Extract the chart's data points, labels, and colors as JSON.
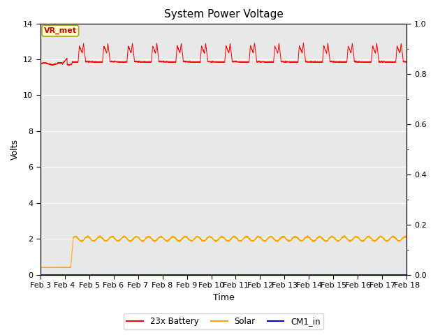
{
  "title": "System Power Voltage",
  "xlabel": "Time",
  "ylabel": "Volts",
  "background_color": "#e8e8e8",
  "fig_background": "#ffffff",
  "x_tick_labels": [
    "Feb 3",
    "Feb 4",
    "Feb 5",
    "Feb 6",
    "Feb 7",
    "Feb 8",
    "Feb 9",
    "Feb 10",
    "Feb 11",
    "Feb 12",
    "Feb 13",
    "Feb 14",
    "Feb 15",
    "Feb 16",
    "Feb 17",
    "Feb 18"
  ],
  "ylim_left": [
    0,
    14
  ],
  "ylim_right": [
    0.0,
    1.0
  ],
  "y_ticks_left": [
    0,
    2,
    4,
    6,
    8,
    10,
    12,
    14
  ],
  "y_ticks_right": [
    0.0,
    0.2,
    0.4,
    0.6,
    0.8,
    1.0
  ],
  "legend_labels": [
    "23x Battery",
    "Solar",
    "CM1_in"
  ],
  "legend_colors": [
    "#ff0000",
    "#ffa500",
    "#0000cc"
  ],
  "annotation_text": "VR_met",
  "annotation_box_color": "#ffffcc",
  "annotation_box_edge": "#aaa820",
  "annotation_text_color": "#cc0000",
  "title_fontsize": 11,
  "axis_label_fontsize": 9,
  "tick_fontsize": 8
}
